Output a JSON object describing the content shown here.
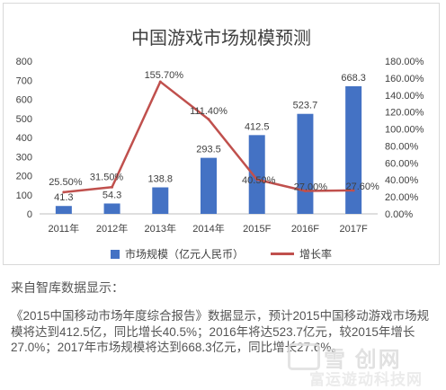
{
  "chart_data": {
    "type": "bar",
    "title": "中国游戏市场规模预测",
    "categories": [
      "2011年",
      "2012年",
      "2013年",
      "2014年",
      "2015F",
      "2016F",
      "2017F"
    ],
    "series": [
      {
        "name": "市场规模（亿元人民币）",
        "type": "bar",
        "axis": "left",
        "color": "#4472C4",
        "values": [
          41.3,
          54.3,
          138.8,
          293.5,
          412.5,
          523.7,
          668.3
        ],
        "labels": [
          "41.3",
          "54.3",
          "138.8",
          "293.5",
          "412.5",
          "523.7",
          "668.3"
        ]
      },
      {
        "name": "增长率",
        "type": "line",
        "axis": "right",
        "color": "#C0504D",
        "values": [
          25.5,
          31.5,
          155.7,
          111.4,
          40.5,
          27.0,
          27.6
        ],
        "labels": [
          "25.50%",
          "31.50%",
          "155.70%",
          "111.40%",
          "40.50%",
          "27.00%",
          "27.60%"
        ]
      }
    ],
    "yleft": {
      "ylim": [
        0,
        800
      ],
      "ticks": [
        "0",
        "100",
        "200",
        "300",
        "400",
        "500",
        "600",
        "700",
        "800"
      ]
    },
    "yright": {
      "ylim": [
        0,
        180
      ],
      "ticks": [
        "0.00%",
        "20.00%",
        "40.00%",
        "60.00%",
        "80.00%",
        "100.00%",
        "120.00%",
        "140.00%",
        "160.00%",
        "180.00%"
      ]
    },
    "grid": false,
    "legend": "bottom"
  },
  "source_text": "来自智库数据显示：",
  "paragraph": "《2015中国移动市场年度综合报告》数据显示，预计2015中国移动游戏市场规模将达到412.5亿，同比增长40.5%；2016年将达523.7亿元，较2015年增长27.0%；2017年市场规模将达到668.3亿元，同比增长27.6%。",
  "watermark": {
    "line1": "雪 创网",
    "line2": "富运遊动科技网"
  }
}
